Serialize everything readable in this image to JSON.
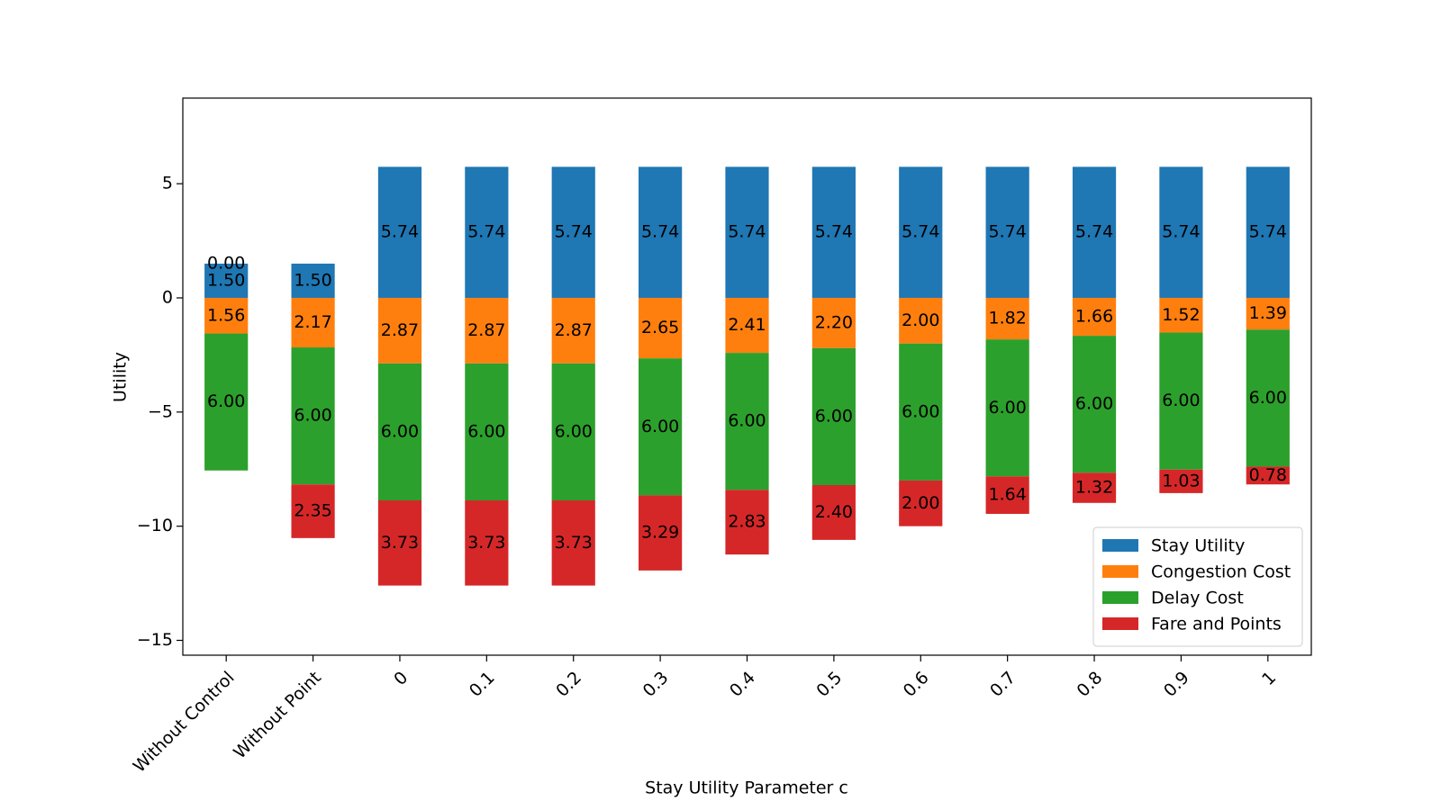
{
  "chart_data": {
    "type": "stacked-bar",
    "x_label": "Stay Utility Parameter c",
    "y_label": "Utility",
    "categories": [
      "Without Control",
      "Without Point",
      "0",
      "0.1",
      "0.2",
      "0.3",
      "0.4",
      "0.5",
      "0.6",
      "0.7",
      "0.8",
      "0.9",
      "1"
    ],
    "series": [
      {
        "name": "Stay Utility",
        "color": "#1f77b4",
        "values": [
          1.5,
          1.5,
          5.74,
          5.74,
          5.74,
          5.74,
          5.74,
          5.74,
          5.74,
          5.74,
          5.74,
          5.74,
          5.74
        ],
        "value_labels": [
          "1.50",
          "1.50",
          "5.74",
          "5.74",
          "5.74",
          "5.74",
          "5.74",
          "5.74",
          "5.74",
          "5.74",
          "5.74",
          "5.74",
          "5.74"
        ]
      },
      {
        "name": "Congestion Cost",
        "color": "#ff7f0e",
        "values": [
          -1.56,
          -2.17,
          -2.87,
          -2.87,
          -2.87,
          -2.65,
          -2.41,
          -2.2,
          -2.0,
          -1.82,
          -1.66,
          -1.52,
          -1.39
        ],
        "value_labels": [
          "1.56",
          "2.17",
          "2.87",
          "2.87",
          "2.87",
          "2.65",
          "2.41",
          "2.20",
          "2.00",
          "1.82",
          "1.66",
          "1.52",
          "1.39"
        ]
      },
      {
        "name": "Delay Cost",
        "color": "#2ca02c",
        "values": [
          -6.0,
          -6.0,
          -6.0,
          -6.0,
          -6.0,
          -6.0,
          -6.0,
          -6.0,
          -6.0,
          -6.0,
          -6.0,
          -6.0,
          -6.0
        ],
        "value_labels": [
          "6.00",
          "6.00",
          "6.00",
          "6.00",
          "6.00",
          "6.00",
          "6.00",
          "6.00",
          "6.00",
          "6.00",
          "6.00",
          "6.00",
          "6.00"
        ]
      },
      {
        "name": "Fare and Points",
        "color": "#d62728",
        "values": [
          0,
          -2.35,
          -3.73,
          -3.73,
          -3.73,
          -3.29,
          -2.83,
          -2.4,
          -2.0,
          -1.64,
          -1.32,
          -1.03,
          -0.78
        ],
        "value_labels": [
          "0.00",
          "2.35",
          "3.73",
          "3.73",
          "3.73",
          "3.29",
          "2.83",
          "2.40",
          "2.00",
          "1.64",
          "1.32",
          "1.03",
          "0.78"
        ]
      }
    ],
    "ylim": [
      -15.65,
      8.75
    ],
    "yticks": [
      {
        "value": -15,
        "label": "−15"
      },
      {
        "value": -10,
        "label": "−10"
      },
      {
        "value": -5,
        "label": "−5"
      },
      0,
      5
    ],
    "legend": "lower right"
  }
}
